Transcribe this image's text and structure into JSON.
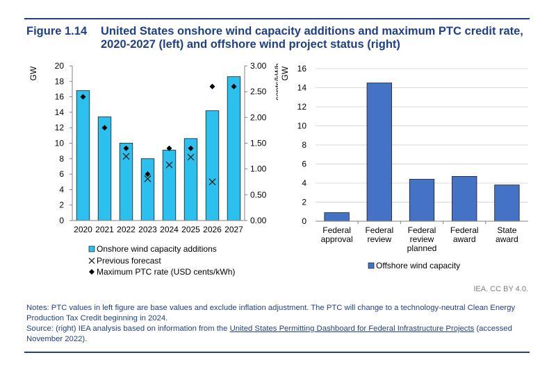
{
  "figure": {
    "number": "Figure 1.14",
    "title": "United States onshore wind capacity additions and maximum PTC credit rate, 2020-2027 (left) and offshore wind project status (right)"
  },
  "chart_data": [
    {
      "type": "bar",
      "categories": [
        "2020",
        "2021",
        "2022",
        "2023",
        "2024",
        "2025",
        "2026",
        "2027"
      ],
      "ylabel": "GW",
      "ylim": [
        0,
        20
      ],
      "yticks": [
        "0",
        "2",
        "4",
        "6",
        "8",
        "10",
        "12",
        "14",
        "16",
        "18",
        "20"
      ],
      "y2label": "cents/kWh",
      "y2lim": [
        0,
        3
      ],
      "y2ticks": [
        "0.00",
        "0.50",
        "1.00",
        "1.50",
        "2.00",
        "2.50",
        "3.00"
      ],
      "series": [
        {
          "name": "Onshore wind capacity additions",
          "kind": "bar",
          "axis": "left",
          "color": "#2cc0ef",
          "values": [
            16.8,
            13.4,
            10.0,
            8.0,
            9.1,
            10.6,
            14.2,
            18.6
          ]
        },
        {
          "name": "Previous forecast",
          "kind": "marker-x",
          "axis": "left",
          "values": [
            null,
            null,
            8.3,
            5.4,
            7.2,
            8.2,
            5.0,
            null
          ]
        },
        {
          "name": "Maximum PTC rate (USD cents/kWh)",
          "kind": "marker-diamond",
          "axis": "right",
          "values": [
            2.4,
            1.8,
            1.4,
            0.9,
            1.4,
            1.4,
            2.6,
            2.6
          ]
        }
      ],
      "legend": "bottom",
      "grid": false
    },
    {
      "type": "bar",
      "categories": [
        "Federal approval",
        "Federal review",
        "Federal review planned",
        "Federal award",
        "State award"
      ],
      "ylabel": "GW",
      "ylim": [
        0,
        16
      ],
      "yticks": [
        "0",
        "2",
        "4",
        "6",
        "8",
        "10",
        "12",
        "14",
        "16"
      ],
      "series": [
        {
          "name": "Offshore wind capacity",
          "color": "#4472c4",
          "values": [
            0.9,
            14.5,
            4.4,
            4.7,
            3.8
          ]
        }
      ],
      "legend": "bottom",
      "grid": true
    }
  ],
  "credit": "IEA. CC BY 4.0.",
  "notes": {
    "line1": "Notes: PTC values in left figure are base values and exclude inflation adjustment. The PTC will change to a technology-neutral Clean Energy Production Tax Credit beginning in 2024.",
    "source_prefix": "Source: (right) IEA analysis based on information from the ",
    "source_link": "United States Permitting Dashboard for Federal Infrastructure Projects",
    "source_suffix": " (accessed November 2022)."
  }
}
